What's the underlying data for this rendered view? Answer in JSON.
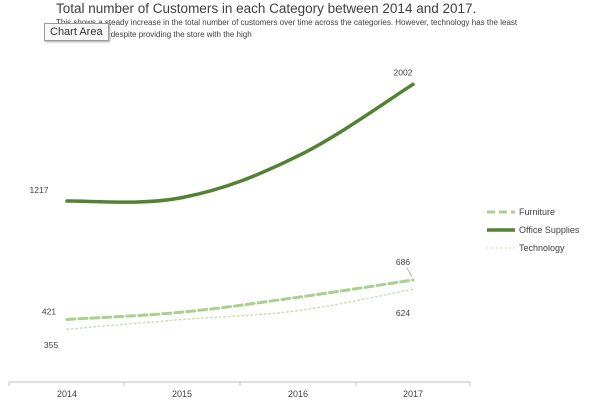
{
  "tooltip": {
    "label": "Chart Area"
  },
  "chart_data": {
    "type": "line",
    "title": "Total number of Customers in each Category between 2014 and 2017.",
    "subtitle": "This shows a steady increase in the total number of customers over time across the categories. However, technology has the least customer base despite providing the store with the high",
    "xlabel": "",
    "ylabel": "",
    "categories": [
      "2014",
      "2015",
      "2016",
      "2017"
    ],
    "ylim": [
      0,
      2300
    ],
    "grid": false,
    "legend_position": "right",
    "series": [
      {
        "name": "Furniture",
        "values": [
          421,
          470,
          570,
          686
        ],
        "color": "#a9d18e",
        "dash": "dashed",
        "labels": [
          "421",
          "",
          "",
          "686"
        ]
      },
      {
        "name": "Office Supplies",
        "values": [
          1217,
          1240,
          1520,
          2002
        ],
        "color": "#548235",
        "dash": "solid",
        "labels": [
          "1217",
          "",
          "",
          "2002"
        ]
      },
      {
        "name": "Technology",
        "values": [
          355,
          420,
          480,
          624
        ],
        "color": "#c5e0b4",
        "dash": "dotted",
        "labels": [
          "355",
          "",
          "",
          "624"
        ]
      }
    ]
  }
}
